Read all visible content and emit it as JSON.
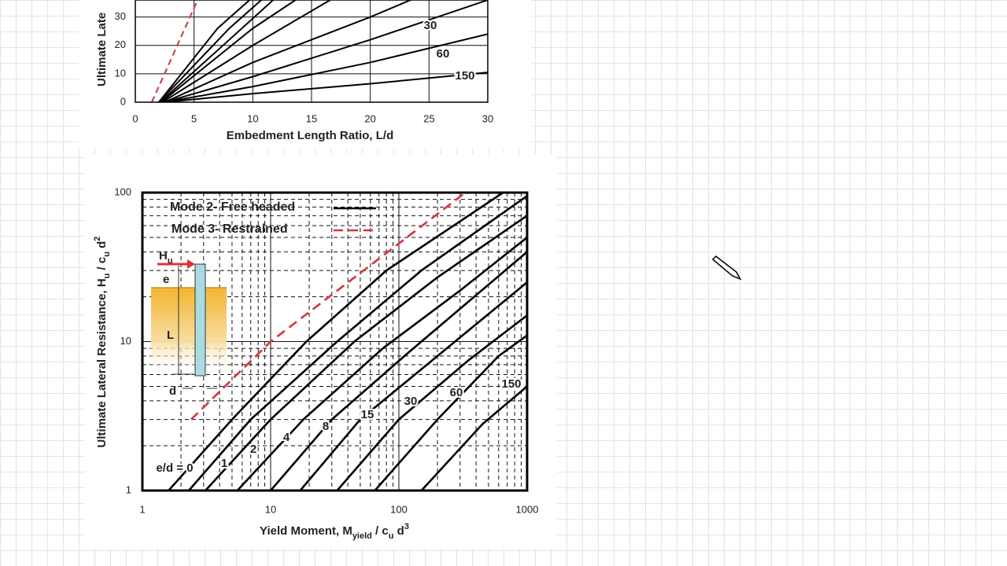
{
  "chart_data": [
    {
      "type": "line",
      "ylabel": "Ultimate Late",
      "xlabel": "Embedment Length Ratio, L/d",
      "xlim": [
        0,
        30
      ],
      "xticks": [
        0,
        5,
        10,
        15,
        20,
        25,
        30
      ],
      "ylim": [
        0,
        36
      ],
      "yticks": [
        0,
        10,
        20,
        30
      ],
      "grid": true,
      "series": [
        {
          "color": "#e0303a",
          "dashed": true,
          "x": [
            1.4,
            5.3
          ],
          "values": [
            0,
            36
          ]
        },
        {
          "color": "#000000",
          "x": [
            2,
            7,
            10
          ],
          "values": [
            0,
            26,
            37
          ]
        },
        {
          "color": "#000000",
          "x": [
            2,
            8,
            11
          ],
          "values": [
            0,
            26,
            37
          ]
        },
        {
          "color": "#000000",
          "x": [
            2.1,
            8,
            12
          ],
          "values": [
            0,
            22,
            37
          ]
        },
        {
          "color": "#000000",
          "x": [
            2.2,
            10,
            14
          ],
          "values": [
            0,
            26,
            37
          ]
        },
        {
          "color": "#000000",
          "x": [
            2.3,
            10,
            17
          ],
          "values": [
            0,
            20,
            37
          ]
        },
        {
          "color": "#000000",
          "x": [
            2.5,
            10,
            20,
            24
          ],
          "values": [
            0,
            14,
            30,
            37
          ]
        },
        {
          "name": "30",
          "color": "#000000",
          "x": [
            2.5,
            10,
            20,
            30
          ],
          "values": [
            0,
            9,
            22,
            36
          ]
        },
        {
          "name": "60",
          "color": "#000000",
          "x": [
            2.5,
            10,
            20,
            30
          ],
          "values": [
            0,
            5.5,
            14,
            24
          ]
        },
        {
          "name": "150",
          "color": "#000000",
          "x": [
            2.5,
            10,
            20,
            30
          ],
          "values": [
            0,
            3,
            6.5,
            10.5
          ]
        }
      ]
    },
    {
      "type": "line",
      "xscale": "log",
      "yscale": "log",
      "xlabel_parts": [
        "Yield Moment, M",
        "yield",
        " / c",
        "u",
        " d",
        "3"
      ],
      "ylabel_parts": [
        "Ultimate Lateral Resistance, H",
        "u",
        " / c",
        "u",
        " d",
        "2"
      ],
      "xlim": [
        1,
        1000
      ],
      "xticks": [
        1,
        10,
        100,
        1000
      ],
      "ylim": [
        1,
        100
      ],
      "yticks": [
        1,
        10,
        100
      ],
      "grid": true,
      "xminor": [
        2,
        3,
        4,
        5,
        6,
        7,
        8,
        9,
        20,
        30,
        40,
        50,
        60,
        70,
        80,
        90,
        200,
        300,
        400,
        500,
        600,
        700,
        800,
        900
      ],
      "yminor": [
        2,
        3,
        4,
        5,
        6,
        7,
        8,
        9,
        20,
        30,
        40,
        50,
        60,
        70,
        80,
        90
      ],
      "legend": [
        {
          "name": "Mode 2- Free headed",
          "color": "#000000",
          "dashed": false
        },
        {
          "name": "Mode 3- Restrained",
          "color": "#e0303a",
          "dashed": true
        }
      ],
      "inset": {
        "force": "H",
        "force_sub": "u",
        "eccentricity": "e",
        "length": "L",
        "diameter": "d"
      },
      "series": [
        {
          "color": "#e0303a",
          "dashed": true,
          "x": [
            2.4,
            10,
            330
          ],
          "values": [
            3,
            10,
            100
          ]
        },
        {
          "name": "e/d = 0",
          "color": "#000000",
          "x": [
            1.6,
            5,
            19,
            80,
            650
          ],
          "values": [
            1,
            3,
            10,
            30,
            100
          ]
        },
        {
          "name": "1",
          "color": "#000000",
          "x": [
            2.3,
            7,
            33,
            150,
            1000
          ],
          "values": [
            1,
            3,
            10,
            30,
            95
          ]
        },
        {
          "name": "2",
          "color": "#000000",
          "x": [
            3.1,
            10,
            45,
            200,
            1000
          ],
          "values": [
            1,
            3,
            10,
            27,
            70
          ]
        },
        {
          "name": "4",
          "color": "#000000",
          "x": [
            5.5,
            18,
            75,
            300,
            1000
          ],
          "values": [
            1,
            3,
            9,
            22,
            50
          ]
        },
        {
          "name": "8",
          "color": "#000000",
          "x": [
            10,
            30,
            120,
            1000
          ],
          "values": [
            1,
            3,
            8.5,
            40
          ]
        },
        {
          "name": "15",
          "color": "#000000",
          "x": [
            17,
            50,
            200,
            1000
          ],
          "values": [
            1,
            3,
            8,
            25
          ]
        },
        {
          "name": "30",
          "color": "#000000",
          "x": [
            33,
            100,
            350,
            1000
          ],
          "values": [
            1,
            3,
            7.5,
            15
          ]
        },
        {
          "name": "60",
          "color": "#000000",
          "x": [
            65,
            200,
            600,
            1000
          ],
          "values": [
            1,
            3,
            8,
            11
          ]
        },
        {
          "name": "150",
          "color": "#000000",
          "x": [
            150,
            450,
            1000
          ],
          "values": [
            1,
            2.8,
            5
          ]
        }
      ]
    }
  ]
}
